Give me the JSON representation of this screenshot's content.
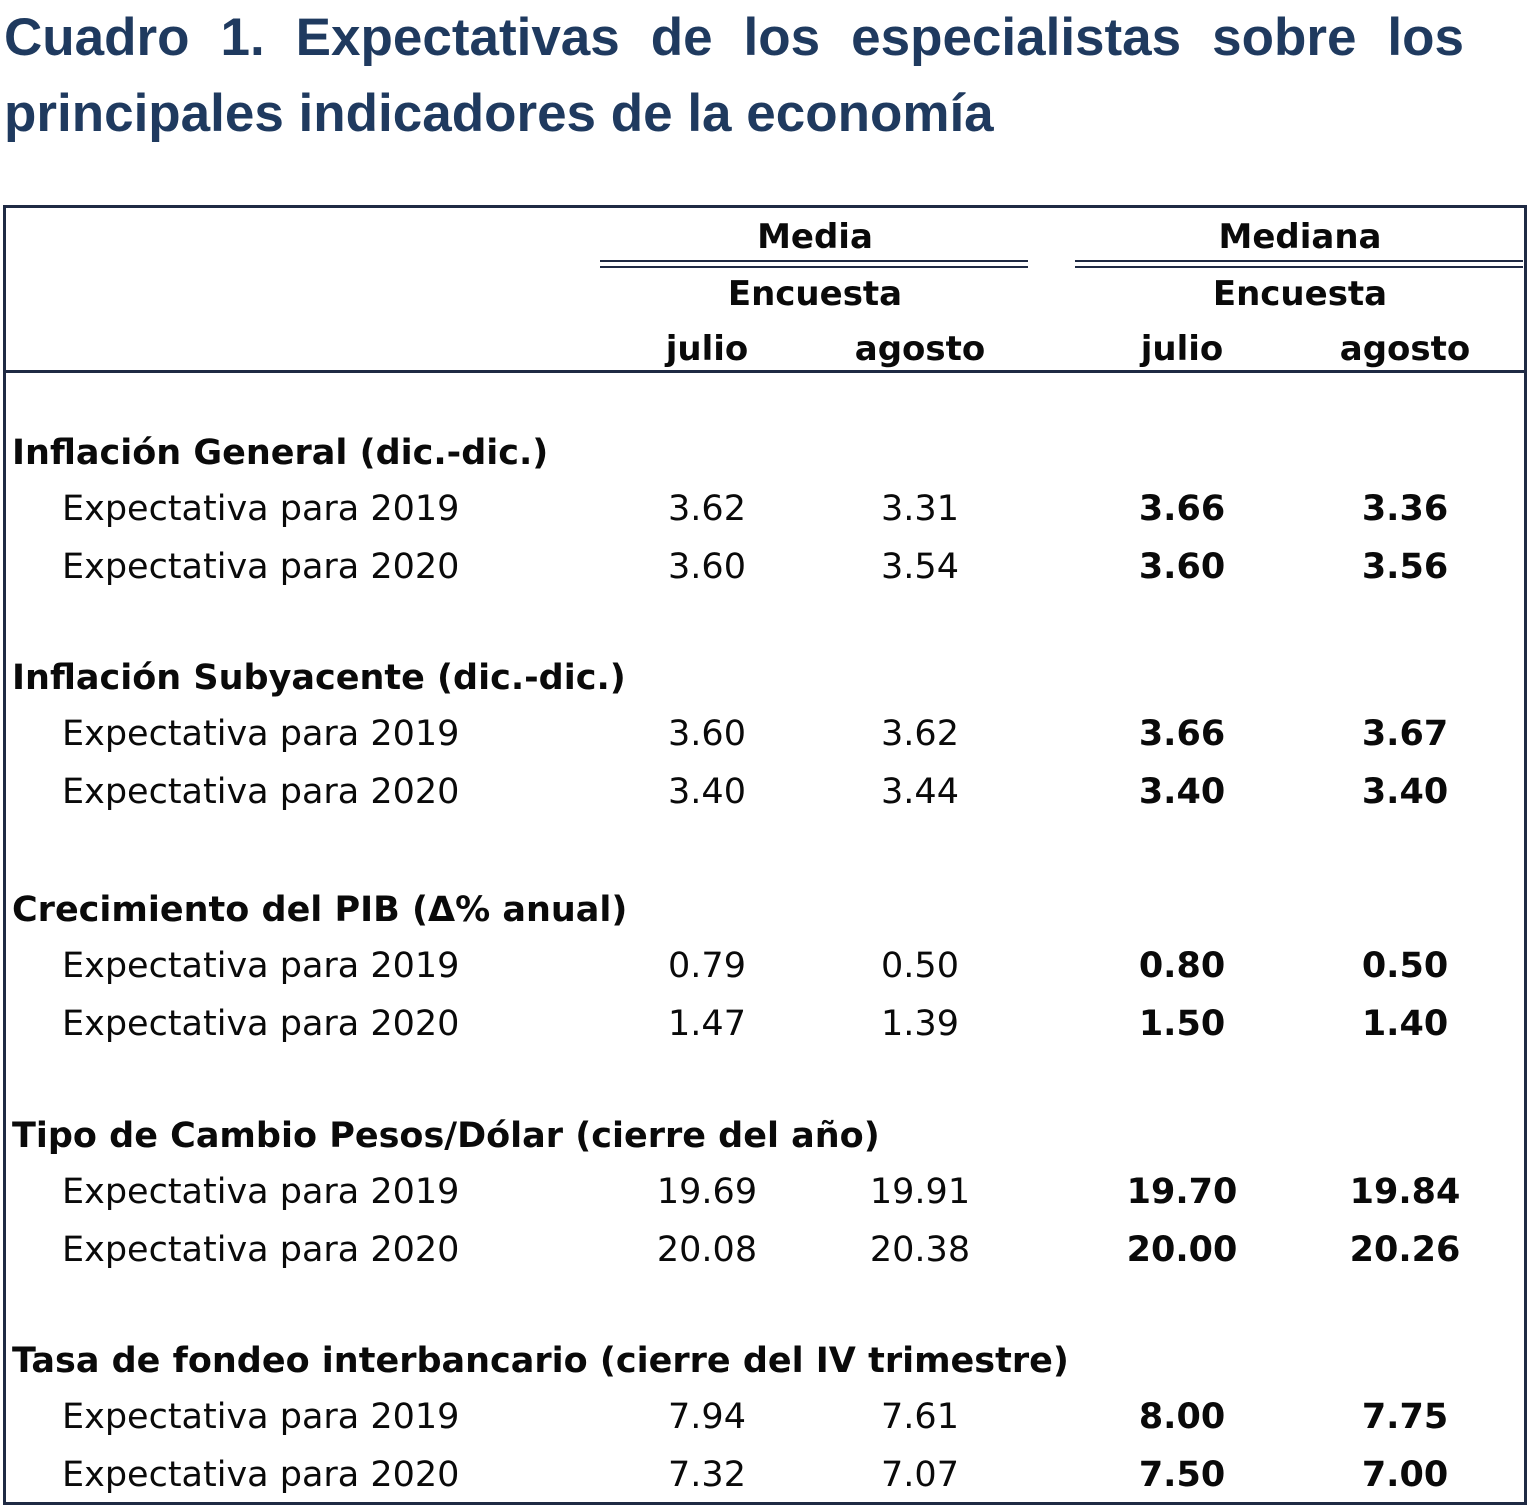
{
  "title": "Cuadro 1. Expectativas de los especialistas sobre los principales indicadores de la economía",
  "header": {
    "media": "Media",
    "mediana": "Mediana",
    "encuesta_media": "Encuesta",
    "encuesta_mediana": "Encuesta",
    "media_julio": "julio",
    "media_agosto": "agosto",
    "mediana_julio": "julio",
    "mediana_agosto": "agosto"
  },
  "sections": [
    {
      "title": "Inflación General (dic.-dic.)",
      "rows": [
        {
          "label": "Expectativa para 2019",
          "media_julio": "3.62",
          "media_agosto": "3.31",
          "mediana_julio": "3.66",
          "mediana_agosto": "3.36"
        },
        {
          "label": "Expectativa para 2020",
          "media_julio": "3.60",
          "media_agosto": "3.54",
          "mediana_julio": "3.60",
          "mediana_agosto": "3.56"
        }
      ]
    },
    {
      "title": "Inflación Subyacente (dic.-dic.)",
      "rows": [
        {
          "label": "Expectativa para 2019",
          "media_julio": "3.60",
          "media_agosto": "3.62",
          "mediana_julio": "3.66",
          "mediana_agosto": "3.67"
        },
        {
          "label": "Expectativa para 2020",
          "media_julio": "3.40",
          "media_agosto": "3.44",
          "mediana_julio": "3.40",
          "mediana_agosto": "3.40"
        }
      ]
    },
    {
      "title": "Crecimiento del PIB (Δ% anual)",
      "rows": [
        {
          "label": "Expectativa para 2019",
          "media_julio": "0.79",
          "media_agosto": "0.50",
          "mediana_julio": "0.80",
          "mediana_agosto": "0.50"
        },
        {
          "label": "Expectativa para 2020",
          "media_julio": "1.47",
          "media_agosto": "1.39",
          "mediana_julio": "1.50",
          "mediana_agosto": "1.40"
        }
      ]
    },
    {
      "title": "Tipo de Cambio Pesos/Dólar (cierre del año)",
      "rows": [
        {
          "label": "Expectativa para 2019",
          "media_julio": "19.69",
          "media_agosto": "19.91",
          "mediana_julio": "19.70",
          "mediana_agosto": "19.84"
        },
        {
          "label": "Expectativa para 2020",
          "media_julio": "20.08",
          "media_agosto": "20.38",
          "mediana_julio": "20.00",
          "mediana_agosto": "20.26"
        }
      ]
    },
    {
      "title": "Tasa de fondeo interbancario (cierre del IV trimestre)",
      "rows": [
        {
          "label": "Expectativa para 2019",
          "media_julio": "7.94",
          "media_agosto": "7.61",
          "mediana_julio": "8.00",
          "mediana_agosto": "7.75"
        },
        {
          "label": "Expectativa para 2020",
          "media_julio": "7.32",
          "media_agosto": "7.07",
          "mediana_julio": "7.50",
          "mediana_agosto": "7.00"
        }
      ]
    }
  ]
}
